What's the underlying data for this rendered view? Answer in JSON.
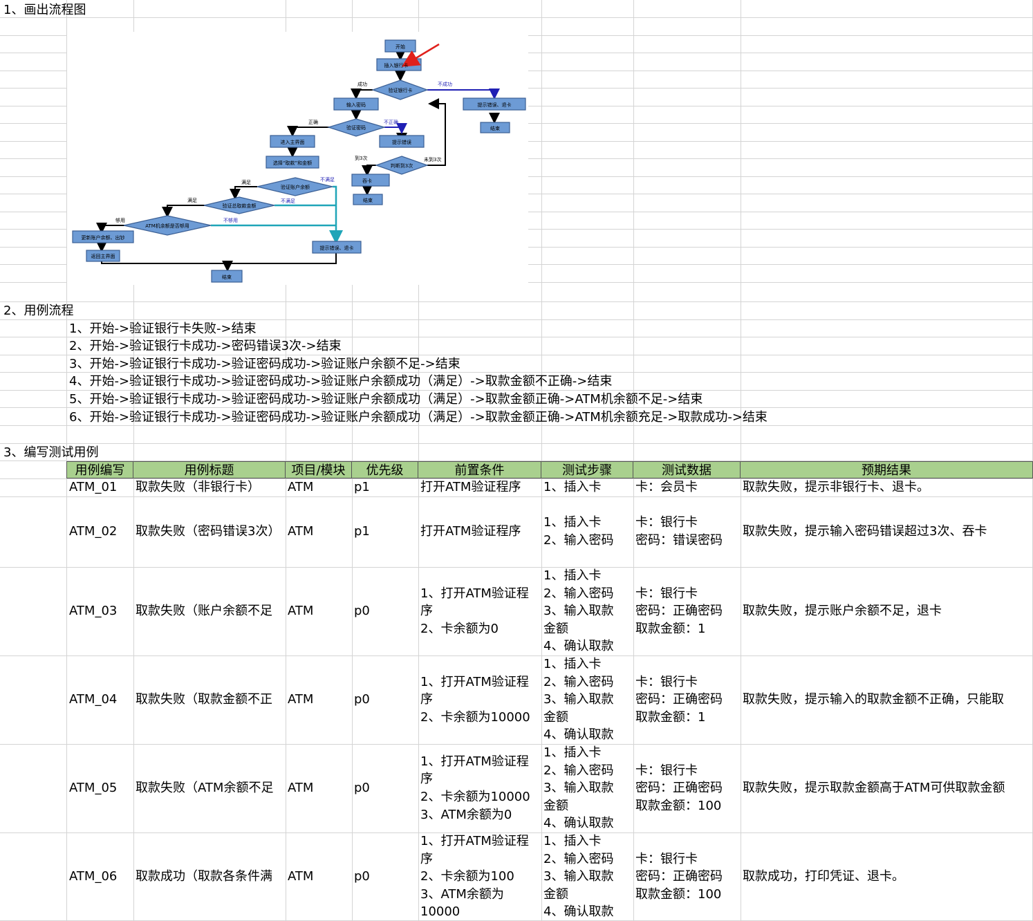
{
  "sections": {
    "s1": "1、画出流程图",
    "s2": "2、用例流程",
    "s3": "3、编写测试用例"
  },
  "flows": [
    "1、开始->验证银行卡失败->结束",
    "2、开始->验证银行卡成功->密码错误3次->结束",
    "3、开始->验证银行卡成功->验证密码成功->验证账户余额不足->结束",
    "4、开始->验证银行卡成功->验证密码成功->验证账户余额成功（满足）->取款金额不正确->结束",
    "5、开始->验证银行卡成功->验证密码成功->验证账户余额成功（满足）->取款金额正确->ATM机余额不足->结束",
    "6、开始->验证银行卡成功->验证密码成功->验证账户余额成功（满足）->取款金额正确->ATM机余额充足->取款成功->结束"
  ],
  "flowchart": {
    "start": "开始",
    "insert_card": "插入银行卡",
    "verify_card": "验证银行卡",
    "card_success": "成功",
    "card_fail": "不成功",
    "card_fail_box": "提示错误、退卡",
    "end": "结束",
    "input_pwd": "输入密码",
    "verify_pwd": "验证密码",
    "pwd_ok": "正确",
    "pwd_wrong": "不正确",
    "pwd_err_box": "提示错误",
    "judge3": "判断到3次",
    "reach3": "到3次",
    "not_reach3": "未到3次",
    "swallow": "吞卡",
    "main_ui": "进入主界面",
    "select_amount": "选择“取款”和金额",
    "verify_balance": "验证账户余额",
    "satisfied": "满足",
    "unsatisfied": "不满足",
    "verify_total": "验证总取款金额",
    "atm_enough_q": "ATM机余额是否够用",
    "enough": "够用",
    "not_enough": "不够用",
    "update_box": "更新账户余额、出钞",
    "back_main": "返回主界面",
    "err_eject": "提示错误、退卡"
  },
  "table": {
    "headers": [
      "用例编写",
      "用例标题",
      "项目/模块",
      "优先级",
      "前置条件",
      "测试步骤",
      "测试数据",
      "预期结果"
    ],
    "rows": [
      {
        "id": "ATM_01",
        "title": "取款失败（非银行卡）",
        "module": "ATM",
        "priority": "p1",
        "pre": [
          "打开ATM验证程序"
        ],
        "steps": [
          "1、插入卡"
        ],
        "data": [
          "卡：会员卡"
        ],
        "expect": "取款失败，提示非银行卡、退卡。"
      },
      {
        "id": "ATM_02",
        "title": "取款失败（密码错误3次）",
        "module": "ATM",
        "priority": "p1",
        "pre": [
          "打开ATM验证程序"
        ],
        "steps": [
          "1、插入卡",
          "2、输入密码"
        ],
        "data": [
          "卡：银行卡",
          "密码：错误密码"
        ],
        "expect": "取款失败，提示输入密码错误超过3次、吞卡"
      },
      {
        "id": "ATM_03",
        "title": "取款失败（账户余额不足",
        "module": "ATM",
        "priority": "p0",
        "pre": [
          "1、打开ATM验证程",
          "序",
          "2、卡余额为0"
        ],
        "steps": [
          "1、插入卡",
          "2、输入密码",
          "3、输入取款",
          "金额",
          "4、确认取款"
        ],
        "data": [
          "卡：银行卡",
          "密码：正确密码",
          "取款金额：1"
        ],
        "expect": "取款失败，提示账户余额不足，退卡"
      },
      {
        "id": "ATM_04",
        "title": "取款失败（取款金额不正",
        "module": "ATM",
        "priority": "p0",
        "pre": [
          "1、打开ATM验证程",
          "序",
          "2、卡余额为10000"
        ],
        "steps": [
          "1、插入卡",
          "2、输入密码",
          "3、输入取款",
          "金额",
          "4、确认取款"
        ],
        "data": [
          "卡：银行卡",
          "密码：正确密码",
          "取款金额：1"
        ],
        "expect": "取款失败，提示输入的取款金额不正确，只能取"
      },
      {
        "id": "ATM_05",
        "title": "取款失败（ATM余额不足",
        "module": "ATM",
        "priority": "p0",
        "pre": [
          "1、打开ATM验证程",
          "序",
          "2、卡余额为10000",
          "3、ATM余额为0"
        ],
        "steps": [
          "1、插入卡",
          "2、输入密码",
          "3、输入取款",
          "金额",
          "4、确认取款"
        ],
        "data": [
          "卡：银行卡",
          "密码：正确密码",
          "取款金额：100"
        ],
        "expect": "取款失败，提示取款金额高于ATM可供取款金额"
      },
      {
        "id": "ATM_06",
        "title": "取款成功（取款各条件满",
        "module": "ATM",
        "priority": "p0",
        "pre": [
          "1、打开ATM验证程",
          "序",
          "2、卡余额为100",
          "3、ATM余额为",
          "10000"
        ],
        "steps": [
          "1、插入卡",
          "2、输入密码",
          "3、输入取款",
          "金额",
          "4、确认取款"
        ],
        "data": [
          "卡：银行卡",
          "密码：正确密码",
          "取款金额：100"
        ],
        "expect": "取款成功，打印凭证、退卡。"
      }
    ]
  },
  "colors": {
    "header_bg": "#a9d08e",
    "grid": "#d4d4d4",
    "box_fill": "#6d9bd5",
    "blue_line": "#1f1fb4",
    "teal_line": "#1fa5b8",
    "red_arrow": "#e0201c"
  }
}
